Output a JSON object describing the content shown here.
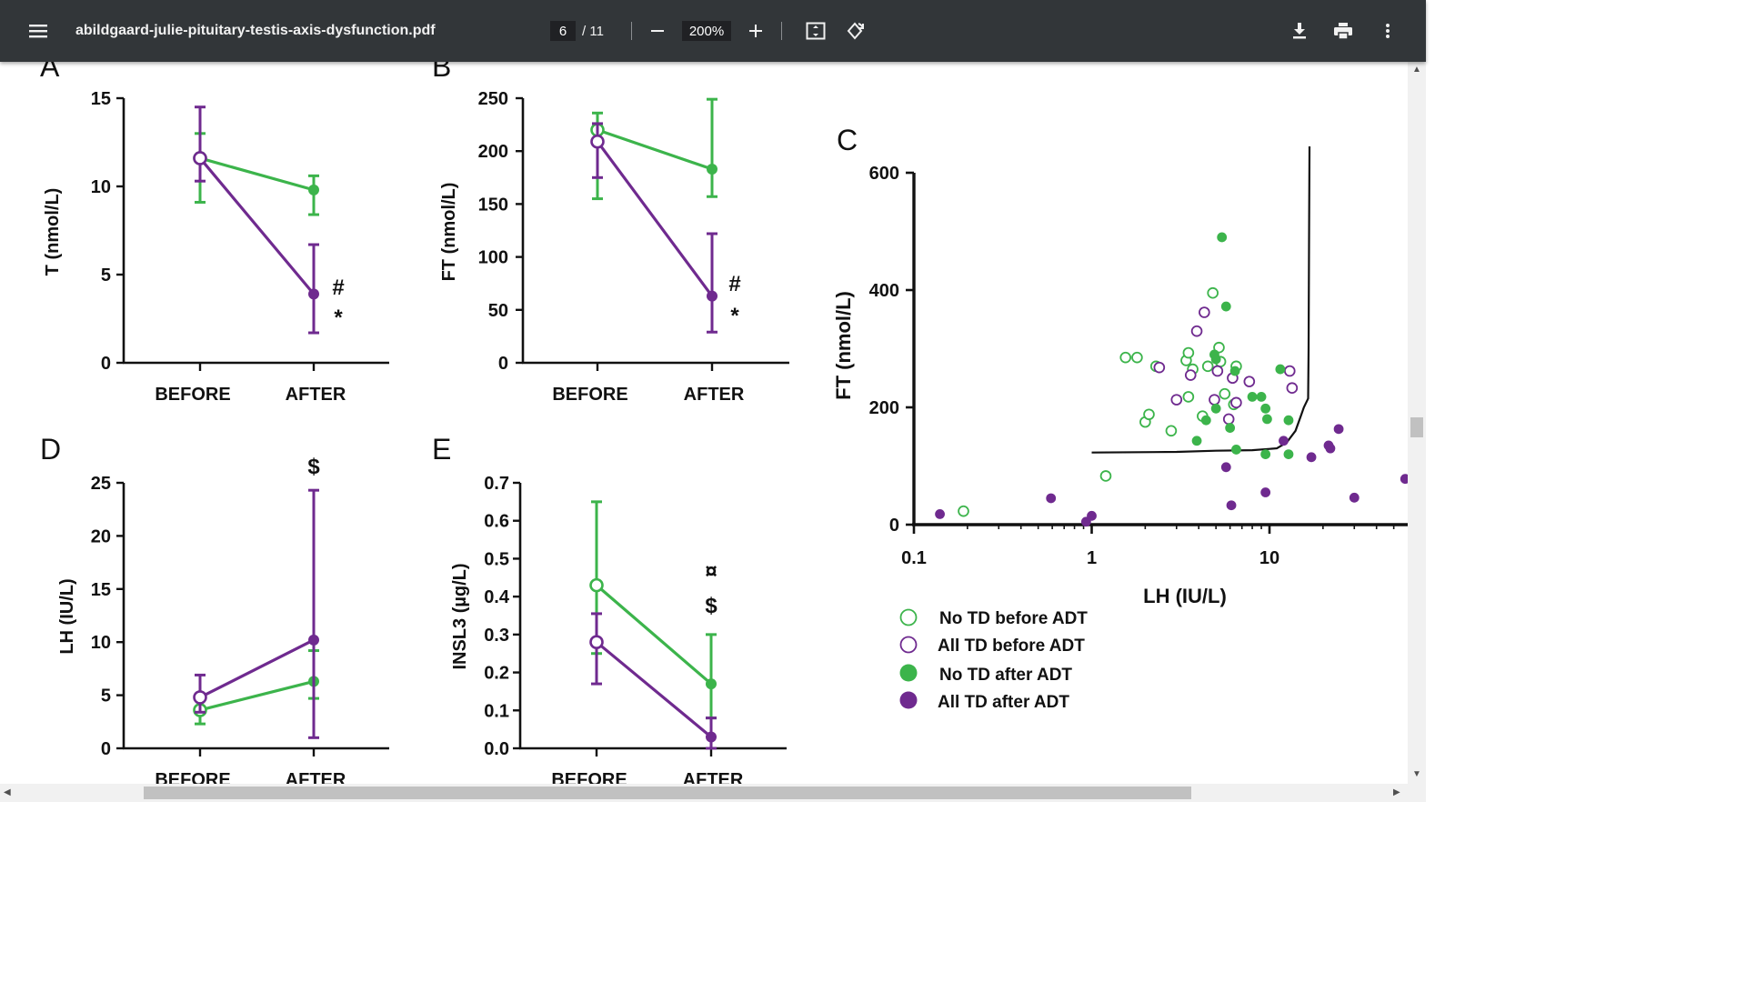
{
  "toolbar": {
    "title": "abildgaard-julie-pituitary-testis-axis-dysfunction.pdf",
    "page_current": "6",
    "page_total": "/ 11",
    "zoom": "200%",
    "icons": [
      "menu-icon",
      "zoom-out-icon",
      "zoom-in-icon",
      "fit-page-icon",
      "rotate-icon",
      "download-icon",
      "print-icon",
      "more-icon"
    ]
  },
  "colors": {
    "green": "#3cb44b",
    "purple": "#6f2a8f",
    "toolbar": "#323639"
  },
  "figure": {
    "panel_letters": {
      "A": "A",
      "B": "B",
      "C": "C",
      "D": "D",
      "E": "E"
    },
    "before_label": "BEFORE",
    "after_label": "AFTER",
    "annotations": {
      "hash": "#",
      "star": "*",
      "dollar": "$",
      "currency": "¤"
    },
    "legend": [
      {
        "label": "No TD before ADT",
        "color": "#3cb44b",
        "filled": false
      },
      {
        "label": "All TD before ADT",
        "color": "#6f2a8f",
        "filled": false
      },
      {
        "label": "No TD after ADT",
        "color": "#3cb44b",
        "filled": true
      },
      {
        "label": "All TD after ADT",
        "color": "#6f2a8f",
        "filled": true
      }
    ]
  },
  "chart_data": [
    {
      "panel": "A",
      "type": "line",
      "ylabel": "T (nmol/L)",
      "categories": [
        "BEFORE",
        "AFTER"
      ],
      "ylim": [
        0,
        15
      ],
      "yticks": [
        0,
        5,
        10,
        15
      ],
      "series": [
        {
          "color": "green",
          "values": [
            11.6,
            9.8
          ],
          "err_low": [
            9.1,
            8.4
          ],
          "err_high": [
            13.0,
            10.6
          ]
        },
        {
          "color": "purple",
          "values": [
            11.6,
            3.9
          ],
          "err_low": [
            10.3,
            1.7
          ],
          "err_high": [
            14.5,
            6.7
          ]
        }
      ]
    },
    {
      "panel": "B",
      "type": "line",
      "ylabel": "FT (nmol/L)",
      "categories": [
        "BEFORE",
        "AFTER"
      ],
      "ylim": [
        0,
        250
      ],
      "yticks": [
        0,
        50,
        100,
        150,
        200,
        250
      ],
      "series": [
        {
          "color": "green",
          "values": [
            220,
            183
          ],
          "err_low": [
            155,
            157
          ],
          "err_high": [
            236,
            249
          ]
        },
        {
          "color": "purple",
          "values": [
            209,
            63
          ],
          "err_low": [
            175,
            29
          ],
          "err_high": [
            226,
            122
          ]
        }
      ]
    },
    {
      "panel": "D",
      "type": "line",
      "ylabel": "LH (IU/L)",
      "categories": [
        "BEFORE",
        "AFTER"
      ],
      "ylim": [
        0,
        25
      ],
      "yticks": [
        0,
        5,
        10,
        15,
        20,
        25
      ],
      "series": [
        {
          "color": "green",
          "values": [
            3.6,
            6.3
          ],
          "err_low": [
            2.3,
            4.7
          ],
          "err_high": [
            4.6,
            9.2
          ]
        },
        {
          "color": "purple",
          "values": [
            4.8,
            10.2
          ],
          "err_low": [
            3.4,
            1.0
          ],
          "err_high": [
            6.9,
            24.3
          ]
        }
      ]
    },
    {
      "panel": "E",
      "type": "line",
      "ylabel": "INSL3  (µg/L)",
      "categories": [
        "BEFORE",
        "AFTER"
      ],
      "ylim": [
        0,
        0.7
      ],
      "yticks": [
        "0.0",
        "0.1",
        "0.2",
        "0.3",
        "0.4",
        "0.5",
        "0.6",
        "0.7"
      ],
      "series": [
        {
          "color": "green",
          "values": [
            0.43,
            0.17
          ],
          "err_low": [
            0.25,
            0.08
          ],
          "err_high": [
            0.65,
            0.3
          ]
        },
        {
          "color": "purple",
          "values": [
            0.28,
            0.03
          ],
          "err_low": [
            0.17,
            0.0
          ],
          "err_high": [
            0.355,
            0.08
          ]
        }
      ]
    },
    {
      "panel": "C",
      "type": "scatter",
      "xlabel": "LH (IU/L)",
      "ylabel": "FT (nmol/L)",
      "x_scale": "log",
      "xlim": [
        0.1,
        60
      ],
      "ylim": [
        0,
        600
      ],
      "xticks": [
        "0.1",
        "1",
        "10"
      ],
      "yticks": [
        0,
        200,
        400,
        600
      ],
      "threshold_curve": [
        [
          1.0,
          123
        ],
        [
          3.0,
          124
        ],
        [
          5.0,
          126
        ],
        [
          8.0,
          127
        ],
        [
          11.0,
          130
        ],
        [
          12.5,
          140
        ],
        [
          14.0,
          160
        ],
        [
          15.0,
          185
        ],
        [
          15.6,
          200
        ],
        [
          16.5,
          215
        ],
        [
          16.6,
          300
        ],
        [
          16.7,
          480
        ],
        [
          16.8,
          645
        ]
      ],
      "series": [
        {
          "name": "No TD before ADT",
          "color": "green",
          "filled": false,
          "points": [
            [
              0.19,
              23
            ],
            [
              1.2,
              83
            ],
            [
              1.55,
              285
            ],
            [
              1.8,
              285
            ],
            [
              2.3,
              270
            ],
            [
              2.8,
              160
            ],
            [
              2.0,
              175
            ],
            [
              2.1,
              188
            ],
            [
              3.4,
              280
            ],
            [
              3.5,
              293
            ],
            [
              3.7,
              265
            ],
            [
              3.5,
              218
            ],
            [
              4.2,
              185
            ],
            [
              4.5,
              270
            ],
            [
              4.8,
              395
            ],
            [
              5.3,
              278
            ],
            [
              5.2,
              302
            ],
            [
              5.6,
              223
            ],
            [
              6.3,
              205
            ],
            [
              6.5,
              270
            ]
          ]
        },
        {
          "name": "All TD before ADT",
          "color": "purple",
          "filled": false,
          "points": [
            [
              2.4,
              268
            ],
            [
              3.0,
              213
            ],
            [
              3.6,
              255
            ],
            [
              3.9,
              330
            ],
            [
              4.3,
              362
            ],
            [
              5.1,
              262
            ],
            [
              6.2,
              250
            ],
            [
              6.5,
              208
            ],
            [
              7.7,
              244
            ],
            [
              4.9,
              213
            ],
            [
              5.9,
              180
            ],
            [
              13.0,
              262
            ],
            [
              13.4,
              233
            ]
          ]
        },
        {
          "name": "No TD after ADT",
          "color": "green",
          "filled": true,
          "points": [
            [
              5.4,
              490
            ],
            [
              5.7,
              372
            ],
            [
              4.9,
              290
            ],
            [
              6.4,
              262
            ],
            [
              5.0,
              282
            ],
            [
              3.9,
              143
            ],
            [
              4.4,
              178
            ],
            [
              5.0,
              198
            ],
            [
              6.0,
              165
            ],
            [
              6.5,
              128
            ],
            [
              8.0,
              218
            ],
            [
              9.0,
              218
            ],
            [
              9.5,
              198
            ],
            [
              9.7,
              180
            ],
            [
              9.5,
              120
            ],
            [
              11.5,
              265
            ],
            [
              12.8,
              178
            ],
            [
              12.8,
              120
            ]
          ]
        },
        {
          "name": "All TD after ADT",
          "color": "purple",
          "filled": true,
          "points": [
            [
              0.14,
              18
            ],
            [
              0.59,
              45
            ],
            [
              0.93,
              5
            ],
            [
              1.0,
              15
            ],
            [
              5.7,
              98
            ],
            [
              6.1,
              33
            ],
            [
              9.5,
              55
            ],
            [
              12.0,
              143
            ],
            [
              17.2,
              115
            ],
            [
              21.5,
              135
            ],
            [
              22.0,
              130
            ],
            [
              24.5,
              163
            ],
            [
              30.0,
              46
            ],
            [
              58.0,
              78
            ]
          ]
        }
      ]
    }
  ]
}
